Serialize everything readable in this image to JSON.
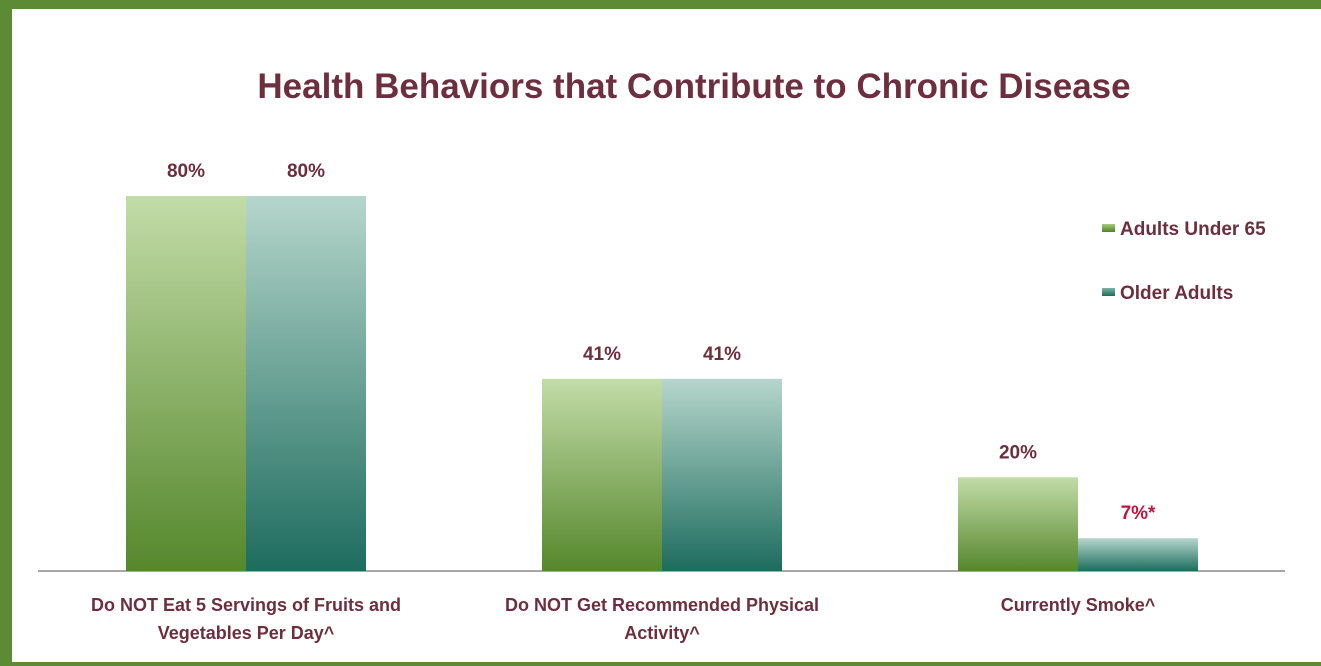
{
  "chart_data": {
    "type": "bar",
    "title": "Health Behaviors that Contribute to Chronic Disease",
    "categories": [
      [
        "Do NOT Eat 5 Servings of Fruits and",
        "Vegetables Per Day^"
      ],
      [
        "Do NOT Get Recommended Physical",
        "Activity^"
      ],
      [
        "Currently Smoke^"
      ]
    ],
    "series": [
      {
        "name": "Adults Under 65",
        "values": [
          80,
          41,
          20
        ],
        "labels": [
          "80%",
          "41%",
          "20%"
        ]
      },
      {
        "name": "Older Adults",
        "values": [
          80,
          41,
          7
        ],
        "labels": [
          "80%",
          "41%",
          "7%*"
        ]
      }
    ],
    "highlight_label_color": "#c0143c",
    "ylim": [
      0,
      80
    ],
    "legend_position": "right",
    "grid": false,
    "colors": {
      "title": "#6d2e40",
      "series0_top": "#c3dca8",
      "series0_bottom": "#55872c",
      "series1_top": "#b6d6cc",
      "series1_bottom": "#1d6c5e",
      "frame": "#5d8a35"
    }
  }
}
